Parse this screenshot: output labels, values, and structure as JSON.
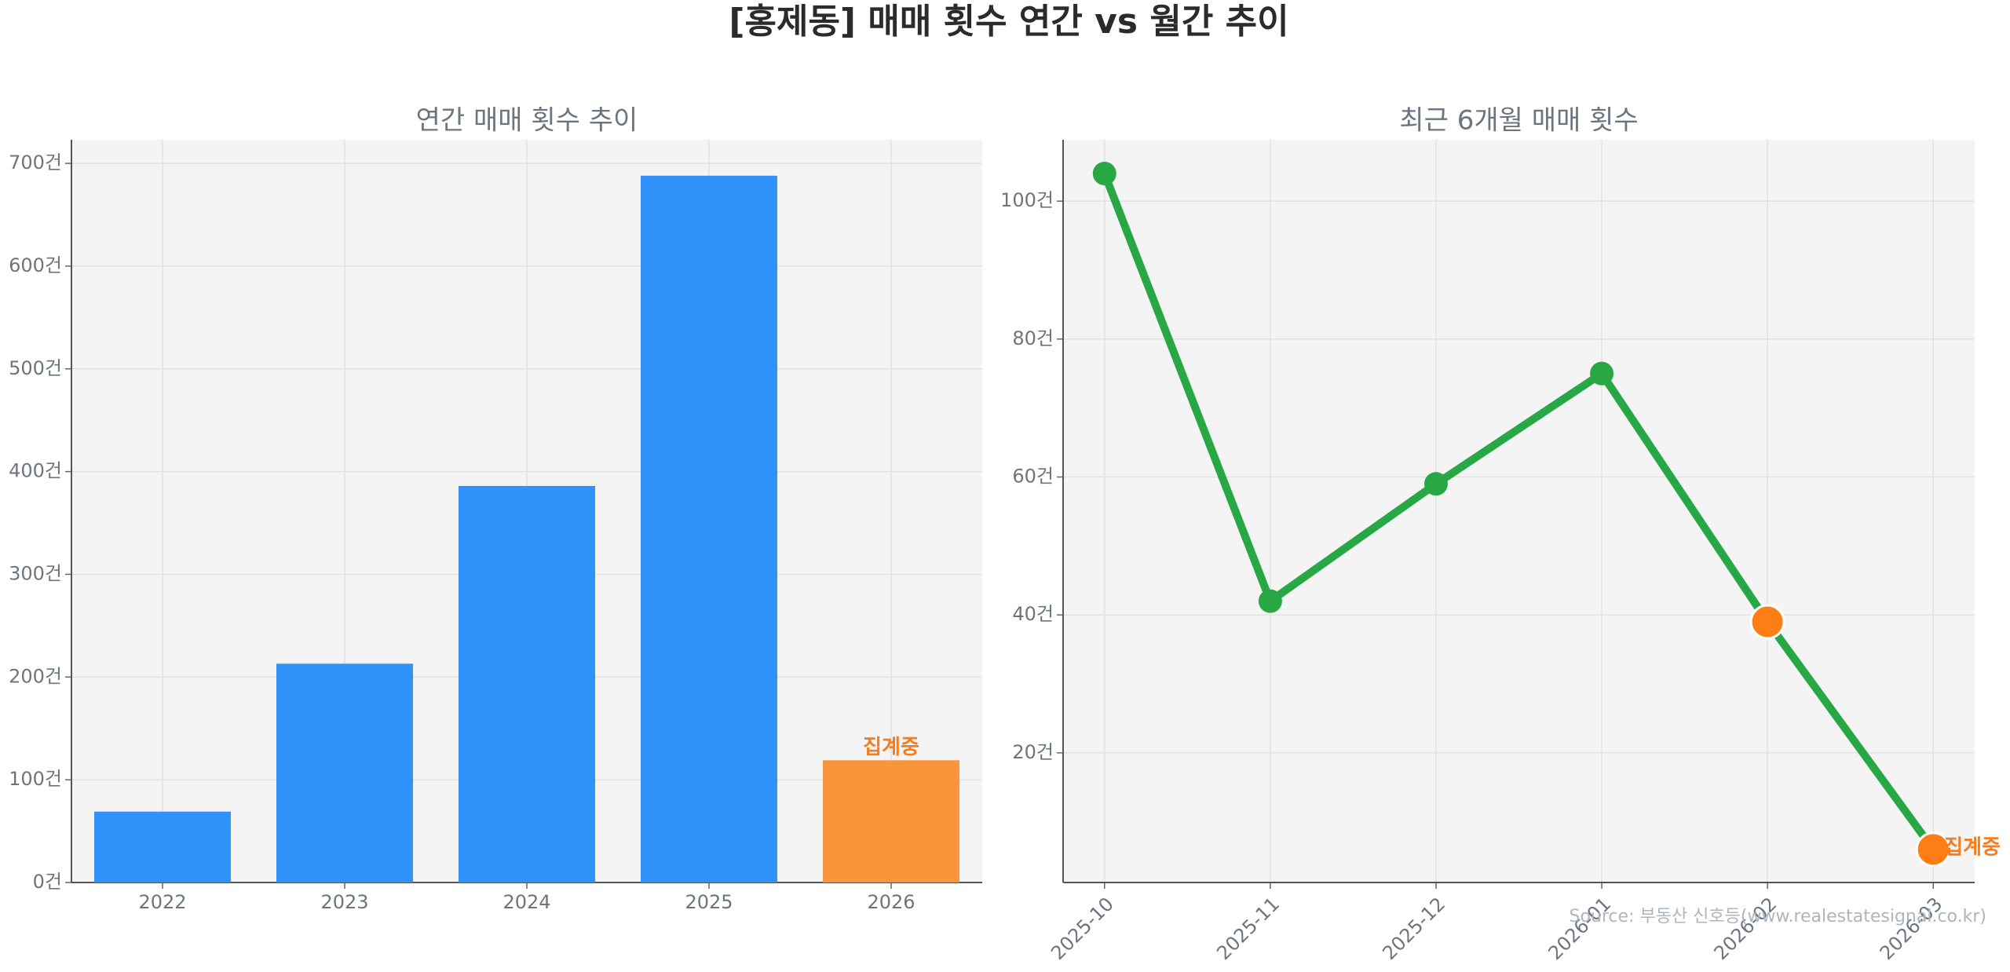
{
  "title": "[홍제동] 매매 횟수 연간 vs 월간 추이",
  "source": "Source: 부동산 신호등(www.realestatesignal.co.kr)",
  "chart_data": [
    {
      "type": "bar",
      "title": "연간 매매 횟수 추이",
      "categories": [
        "2022",
        "2023",
        "2024",
        "2025",
        "2026"
      ],
      "values": [
        69,
        213,
        386,
        688,
        119
      ],
      "colors": [
        "#3292fb",
        "#3292fb",
        "#3292fb",
        "#3292fb",
        "#f9963c"
      ],
      "annotation": {
        "text": "집계중",
        "index": 4,
        "color": "#f57c1f"
      },
      "ylim": [
        0,
        723
      ],
      "yticks": [
        {
          "value": 0,
          "label": "0건"
        },
        {
          "value": 100,
          "label": "100건"
        },
        {
          "value": 200,
          "label": "200건"
        },
        {
          "value": 300,
          "label": "300건"
        },
        {
          "value": 400,
          "label": "400건"
        },
        {
          "value": 500,
          "label": "500건"
        },
        {
          "value": 600,
          "label": "600건"
        },
        {
          "value": 700,
          "label": "700건"
        }
      ],
      "grid": true
    },
    {
      "type": "line",
      "title": "최근 6개월 매매 횟수",
      "categories": [
        "2025-10",
        "2025-11",
        "2025-12",
        "2026-01",
        "2026-02",
        "2026-03"
      ],
      "values": [
        104,
        42,
        59,
        75,
        39,
        6
      ],
      "color": "#28a745",
      "marker_colors": [
        "#28a745",
        "#28a745",
        "#28a745",
        "#28a745",
        "#fd7e14",
        "#fd7e14"
      ],
      "annotation": {
        "text": "집계중",
        "index": 5,
        "color": "#f57c1f"
      },
      "ylim": [
        1.2,
        108.9
      ],
      "yticks": [
        {
          "value": 20,
          "label": "20건"
        },
        {
          "value": 40,
          "label": "40건"
        },
        {
          "value": 60,
          "label": "60건"
        },
        {
          "value": 80,
          "label": "80건"
        },
        {
          "value": 100,
          "label": "100건"
        }
      ],
      "grid": true
    }
  ]
}
